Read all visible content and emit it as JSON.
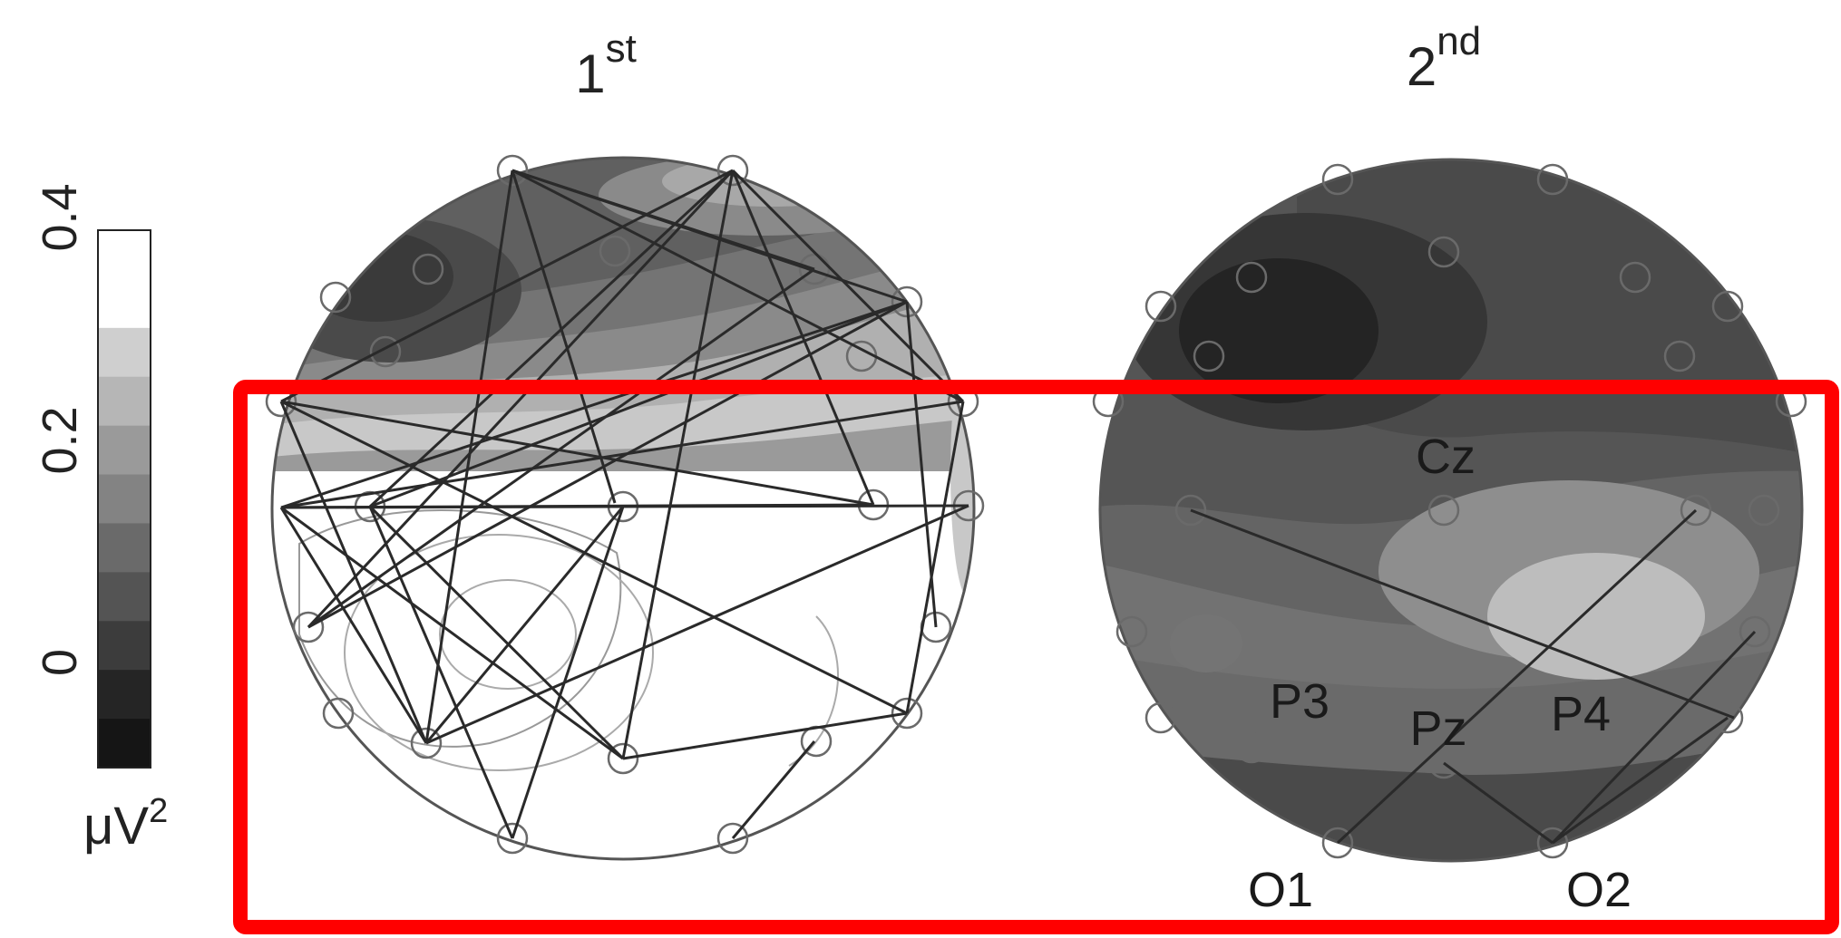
{
  "colorbar": {
    "ticks": [
      "0.4",
      "0.2",
      "0"
    ],
    "unit_base": "μV",
    "unit_exp": "2",
    "band_colors": [
      "#ffffff",
      "#ffffff",
      "#cfcfcf",
      "#b6b6b6",
      "#9a9a9a",
      "#838383",
      "#6a6a6a",
      "#545454",
      "#3c3c3c",
      "#252525",
      "#151515"
    ]
  },
  "maps": [
    {
      "title_main": "1",
      "title_sup": "st"
    },
    {
      "title_main": "2",
      "title_sup": "nd"
    }
  ],
  "electrode_labels": [
    "Cz",
    "P3",
    "Pz",
    "P4",
    "O1",
    "O2"
  ],
  "highlight": {
    "color": "#ff0000"
  }
}
